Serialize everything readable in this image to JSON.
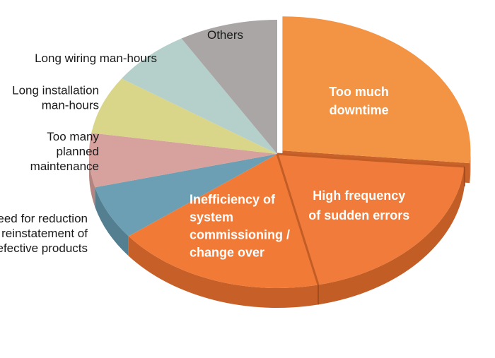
{
  "chart_data": {
    "type": "pie",
    "style": "3d-exploded",
    "title": "",
    "slices": [
      {
        "label": "Too much downtime",
        "label_lines": [
          "Too much",
          "downtime"
        ],
        "value": 26.5,
        "label_position": "inside",
        "exploded": true,
        "color": "#F39344",
        "side_color": "#C9622A"
      },
      {
        "label": "High frequency of sudden errors",
        "label_lines": [
          "High frequency",
          "of sudden errors"
        ],
        "value": 20,
        "label_position": "inside",
        "exploded": false,
        "color": "#F07B3A",
        "side_color": "#C25D26"
      },
      {
        "label": "Inefficiency of system commissioning / change over",
        "label_lines": [
          "Inefficiency of",
          "system",
          "commissioning /",
          "change over"
        ],
        "value": 18,
        "label_position": "inside",
        "exploded": false,
        "color": "#F27A37",
        "side_color": "#C65F28"
      },
      {
        "label": "Need for reduction of reinstatement of defective products",
        "label_lines": [
          "Need for reduction",
          "of reinstatement of",
          "defective products"
        ],
        "value": 6.5,
        "label_position": "outside",
        "exploded": false,
        "color": "#6C9FB3",
        "side_color": "#547F91"
      },
      {
        "label": "Too many planned maintenance",
        "label_lines": [
          "Too many",
          "planned",
          "maintenance"
        ],
        "value": 6.5,
        "label_position": "outside",
        "exploded": false,
        "color": "#D7A29D",
        "side_color": "#B48580"
      },
      {
        "label": "Long installation man-hours",
        "label_lines": [
          "Long installation",
          "man-hours"
        ],
        "value": 7,
        "label_position": "outside",
        "exploded": false,
        "color": "#D9D68A",
        "side_color": "#B5B26E"
      },
      {
        "label": "Long wiring man-hours",
        "label_lines": [
          "Long wiring man-hours"
        ],
        "value": 7,
        "label_position": "outside",
        "exploded": false,
        "color": "#B5CFCB",
        "side_color": "#95ACA8"
      },
      {
        "label": "Others",
        "label_lines": [
          "Others"
        ],
        "value": 8.5,
        "label_position": "outside",
        "exploded": false,
        "color": "#A9A6A5",
        "side_color": "#898685"
      }
    ]
  }
}
